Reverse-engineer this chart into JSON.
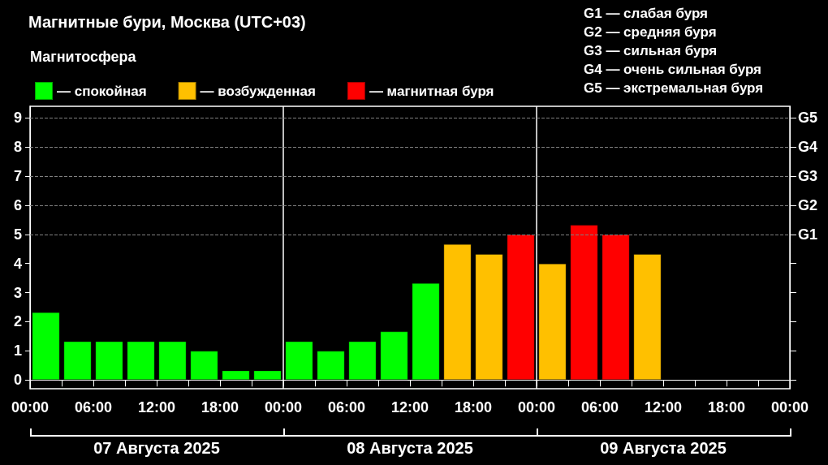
{
  "chart_data": {
    "type": "bar",
    "title": "Магнитные бури, Москва (UTC+03)",
    "legend_title": "Магнитосфера",
    "legend": "top left",
    "grid": false,
    "x": [
      "2025-08-07T01:30",
      "2025-08-07T04:30",
      "2025-08-07T07:30",
      "2025-08-07T10:30",
      "2025-08-07T13:30",
      "2025-08-07T16:30",
      "2025-08-07T19:30",
      "2025-08-07T22:30",
      "2025-08-08T01:30",
      "2025-08-08T04:30",
      "2025-08-08T07:30",
      "2025-08-08T10:30",
      "2025-08-08T13:30",
      "2025-08-08T16:30",
      "2025-08-08T19:30",
      "2025-08-08T22:30",
      "2025-08-09T01:30",
      "2025-08-09T04:30",
      "2025-08-09T07:30",
      "2025-08-09T10:30"
    ],
    "series": [
      {
        "name": "— спокойная",
        "color": "#00ff00",
        "values": [
          2.33,
          1.33,
          1.33,
          1.33,
          1.33,
          1.0,
          0.33,
          0.33,
          1.33,
          1.0,
          1.33,
          1.67,
          3.33,
          null,
          null,
          null,
          null,
          null,
          null,
          null
        ]
      },
      {
        "name": "— возбужденная",
        "color": "#ffc000",
        "values": [
          null,
          null,
          null,
          null,
          null,
          null,
          null,
          null,
          null,
          null,
          null,
          null,
          null,
          4.67,
          4.33,
          null,
          4.0,
          null,
          null,
          4.33
        ]
      },
      {
        "name": "— магнитная буря",
        "color": "#ff0000",
        "values": [
          null,
          null,
          null,
          null,
          null,
          null,
          null,
          null,
          null,
          null,
          null,
          null,
          null,
          null,
          null,
          5.0,
          null,
          5.33,
          5.0,
          null
        ]
      }
    ],
    "xlim": [
      "2025-08-07T00:00",
      "2025-08-10T00:00"
    ],
    "xticks": [
      {
        "value": "2025-08-07T00:00",
        "label": "00:00"
      },
      {
        "value": "2025-08-07T03:00",
        "label": null
      },
      {
        "value": "2025-08-07T06:00",
        "label": "06:00"
      },
      {
        "value": "2025-08-07T09:00",
        "label": null
      },
      {
        "value": "2025-08-07T12:00",
        "label": "12:00"
      },
      {
        "value": "2025-08-07T15:00",
        "label": null
      },
      {
        "value": "2025-08-07T18:00",
        "label": "18:00"
      },
      {
        "value": "2025-08-07T21:00",
        "label": null
      },
      {
        "value": "2025-08-08T00:00",
        "label": "00:00"
      },
      {
        "value": "2025-08-08T03:00",
        "label": null
      },
      {
        "value": "2025-08-08T06:00",
        "label": "06:00"
      },
      {
        "value": "2025-08-08T09:00",
        "label": null
      },
      {
        "value": "2025-08-08T12:00",
        "label": "12:00"
      },
      {
        "value": "2025-08-08T15:00",
        "label": null
      },
      {
        "value": "2025-08-08T18:00",
        "label": "18:00"
      },
      {
        "value": "2025-08-08T21:00",
        "label": null
      },
      {
        "value": "2025-08-09T00:00",
        "label": "00:00"
      },
      {
        "value": "2025-08-09T03:00",
        "label": null
      },
      {
        "value": "2025-08-09T06:00",
        "label": "06:00"
      },
      {
        "value": "2025-08-09T09:00",
        "label": null
      },
      {
        "value": "2025-08-09T12:00",
        "label": "12:00"
      },
      {
        "value": "2025-08-09T15:00",
        "label": null
      },
      {
        "value": "2025-08-09T18:00",
        "label": "18:00"
      },
      {
        "value": "2025-08-09T21:00",
        "label": null
      },
      {
        "value": "2025-08-10T00:00",
        "label": "00:00"
      }
    ],
    "ylim": [
      -0.3,
      9.4
    ],
    "yticks": [
      0,
      1,
      2,
      3,
      4,
      5,
      6,
      7,
      8,
      9
    ],
    "ref_lines": [
      {
        "axis": "x",
        "value": "2025-08-08T00:00",
        "color": "#ffffff",
        "line_style": "solid"
      },
      {
        "axis": "x",
        "value": "2025-08-09T00:00",
        "color": "#ffffff",
        "line_style": "solid"
      },
      {
        "axis": "y",
        "value": 5,
        "label": "G1",
        "color": "#808080",
        "line_style": "dashed"
      },
      {
        "axis": "y",
        "value": 6,
        "label": "G2",
        "color": "#808080",
        "line_style": "dashed"
      },
      {
        "axis": "y",
        "value": 7,
        "label": "G3",
        "color": "#808080",
        "line_style": "dashed"
      },
      {
        "axis": "y",
        "value": 8,
        "label": "G4",
        "color": "#808080",
        "line_style": "dashed"
      },
      {
        "axis": "y",
        "value": 9,
        "label": "G5",
        "color": "#808080",
        "line_style": "dashed"
      }
    ],
    "annotations": [
      "G1 — слабая буря",
      "G2 — средняя буря",
      "G3 — сильная буря",
      "G4 — очень сильная буря",
      "G5 — экстремальная буря",
      "07 Августа 2025",
      "08 Августа 2025",
      "09 Августа 2025"
    ]
  }
}
